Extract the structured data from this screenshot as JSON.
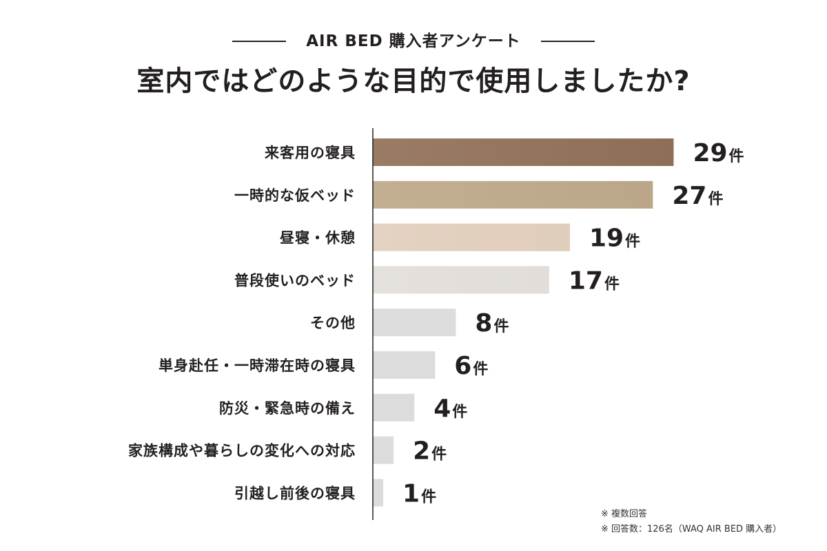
{
  "header": {
    "subtitle": "AIR BED 購入者アンケート",
    "title": "室内ではどのような目的で使用しましたか?"
  },
  "chart_data": {
    "type": "bar",
    "orientation": "horizontal",
    "title": "室内ではどのような目的で使用しましたか?",
    "subtitle": "AIR BED 購入者アンケート",
    "xlim": [
      0,
      32
    ],
    "grid": false,
    "value_unit": "件",
    "categories": [
      "来客用の寝具",
      "一時的な仮ベッド",
      "昼寝・休憩",
      "普段使いのベッド",
      "その他",
      "単身赴任・一時滞在時の寝具",
      "防災・緊急時の備え",
      "家族構成や暮らしの変化への対応",
      "引越し前後の寝具"
    ],
    "values": [
      29,
      27,
      19,
      17,
      8,
      6,
      4,
      2,
      1
    ],
    "colors": [
      "#9a7b63",
      "#c4ae92",
      "#e4d2c2",
      "#e4e0dc",
      "#dddcdc",
      "#dddcdc",
      "#dddcdc",
      "#dddcdc",
      "#dddcdc"
    ],
    "gradient_end_colors": [
      "#8e6e56",
      "#bca689",
      "#e0cdbb",
      "#e2ddd8",
      "#dddcdc",
      "#dddcdc",
      "#dddcdc",
      "#dddcdc",
      "#dddcdc"
    ]
  },
  "notes": {
    "line1": "※ 複数回答",
    "line2": "※ 回答数：126名（WAQ AIR BED 購入者）"
  }
}
